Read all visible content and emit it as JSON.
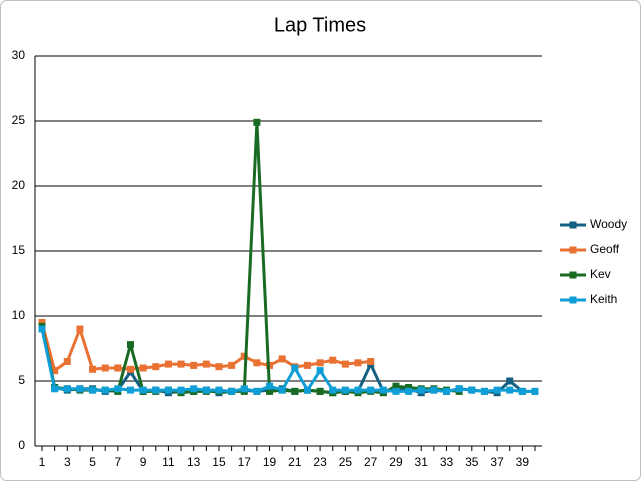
{
  "chart_data": {
    "type": "line",
    "title": "Lap Times",
    "categories": [
      "1",
      null,
      "3",
      null,
      "5",
      null,
      "7",
      null,
      "9",
      null,
      "11",
      null,
      "13",
      null,
      "15",
      null,
      "17",
      null,
      "19",
      null,
      "21",
      null,
      "23",
      null,
      "25",
      null,
      "27",
      null,
      "29",
      null,
      "31",
      null,
      "33",
      null,
      "35",
      null,
      "37",
      null,
      "39",
      null
    ],
    "series": [
      {
        "name": "Woody",
        "color": "#156082",
        "values": [
          9.3,
          4.5,
          4.3,
          4.4,
          4.4,
          4.2,
          4.3,
          5.7,
          4.2,
          4.3,
          4.1,
          4.2,
          4.2,
          4.3,
          4.1,
          4.2,
          4.3,
          4.2,
          4.3,
          4.4,
          4.2,
          4.3,
          4.2,
          4.1,
          4.2,
          4.2,
          6.3,
          4.2,
          4.3,
          4.4,
          4.1,
          4.3,
          4.2,
          4.4,
          4.3,
          4.2,
          4.1,
          5.0,
          4.2,
          4.2
        ]
      },
      {
        "name": "Geoff",
        "color": "#E97132",
        "values": [
          9.5,
          5.8,
          6.5,
          9.0,
          5.9,
          6.0,
          6.0,
          5.9,
          6.0,
          6.1,
          6.3,
          6.3,
          6.2,
          6.3,
          6.1,
          6.2,
          6.9,
          6.4,
          6.2,
          6.7,
          6.1,
          6.2,
          6.4,
          6.6,
          6.3,
          6.4,
          6.5,
          null,
          null,
          null,
          null,
          null,
          null,
          null,
          null,
          null,
          null,
          null,
          null,
          null
        ]
      },
      {
        "name": "Kev",
        "color": "#196B24",
        "values": [
          9.2,
          4.5,
          4.4,
          4.3,
          4.3,
          4.3,
          4.2,
          7.8,
          4.2,
          4.2,
          4.3,
          4.1,
          4.2,
          4.2,
          4.2,
          4.2,
          4.2,
          24.9,
          4.2,
          4.3,
          4.2,
          4.3,
          4.2,
          4.1,
          4.2,
          4.1,
          4.2,
          4.1,
          4.6,
          4.5,
          4.4,
          4.4,
          4.3,
          4.2,
          null,
          null,
          null,
          null,
          null,
          null
        ]
      },
      {
        "name": "Keith",
        "color": "#0F9ED5",
        "values": [
          9.0,
          4.4,
          4.4,
          4.4,
          4.3,
          4.3,
          4.4,
          4.3,
          4.3,
          4.3,
          4.3,
          4.3,
          4.4,
          4.3,
          4.3,
          4.2,
          4.4,
          4.2,
          4.6,
          4.3,
          6.0,
          4.3,
          5.8,
          4.3,
          4.3,
          4.3,
          4.3,
          4.3,
          4.2,
          4.2,
          4.3,
          4.3,
          4.2,
          4.4,
          4.3,
          4.2,
          4.3,
          4.3,
          4.2,
          4.2
        ]
      }
    ],
    "ylim": [
      0,
      30
    ],
    "yticks": [
      0,
      5,
      10,
      15,
      20,
      25,
      30
    ],
    "grid": true,
    "legend": "right"
  }
}
